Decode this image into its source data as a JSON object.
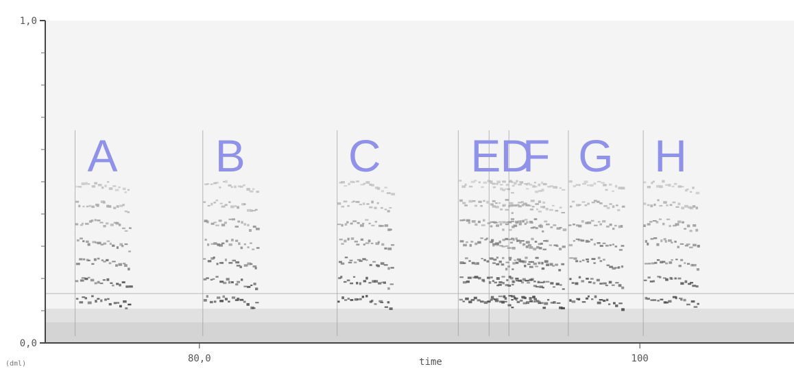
{
  "chart_data": {
    "type": "heatmap",
    "title": "",
    "xlabel": "time",
    "ylabel": "",
    "unit_label": "(dml)",
    "y_ticks": [
      {
        "value": 0.0,
        "label": "0,0"
      },
      {
        "value": 1.0,
        "label": "1,0"
      }
    ],
    "x_ticks": [
      {
        "value": 80,
        "label": "80,0"
      },
      {
        "value": 100,
        "label": "100"
      }
    ],
    "xlim": [
      73,
      107
    ],
    "ylim": [
      0,
      1
    ],
    "grid": false,
    "accent_color": "#8f92e8",
    "segments": [
      {
        "label": "A",
        "x_center": 75.6
      },
      {
        "label": "B",
        "x_center": 81.4
      },
      {
        "label": "C",
        "x_center": 87.5
      },
      {
        "label": "D",
        "x_center": 94.4
      },
      {
        "label": "E",
        "x_center": 93.0
      },
      {
        "label": "F",
        "x_center": 95.3
      },
      {
        "label": "G",
        "x_center": 98.0
      },
      {
        "label": "H",
        "x_center": 101.4
      }
    ]
  }
}
